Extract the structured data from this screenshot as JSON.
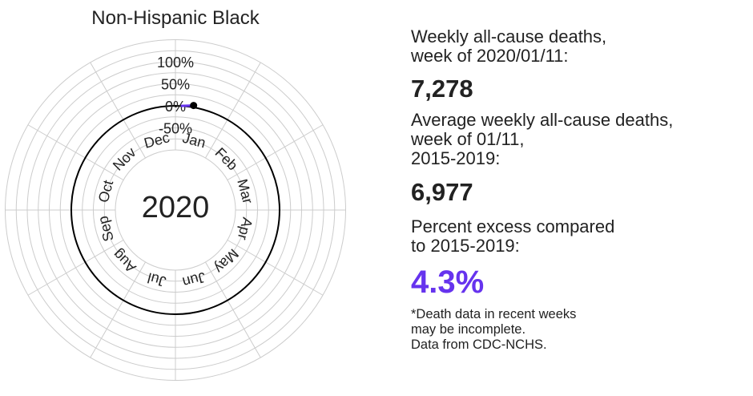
{
  "title": "Non-Hispanic Black",
  "chart_data": {
    "type": "radial",
    "title": "Non-Hispanic Black",
    "center_label": "2020",
    "radial_axis": {
      "ticks": [
        "100%",
        "50%",
        "0%",
        "-50%"
      ],
      "values": [
        100,
        50,
        0,
        -50
      ]
    },
    "months": [
      "Jan",
      "Feb",
      "Mar",
      "Apr",
      "May",
      "Jun",
      "Jul",
      "Aug",
      "Sep",
      "Oct",
      "Nov",
      "Dec"
    ],
    "series": [
      {
        "values": [
          {
            "x": "2020-01-04",
            "y": 0
          },
          {
            "x": "2020-01-11",
            "y": 4.3
          }
        ]
      }
    ],
    "grid": true
  },
  "panel": {
    "weekly_label": "Weekly all-cause deaths,\nweek of 2020/01/11:",
    "weekly_value": "7,278",
    "avg_label": "Average weekly all-cause deaths,\nweek of 01/11,\n2015-2019:",
    "avg_value": "6,977",
    "excess_label": "Percent excess compared\nto 2015-2019:",
    "excess_value": "4.3%",
    "note": "*Death data in recent weeks\nmay be incomplete.\nData from CDC-NCHS."
  },
  "colors": {
    "accent": "#6633ee",
    "grid": "#cccccc",
    "baseline": "#000000",
    "text": "#222222"
  }
}
